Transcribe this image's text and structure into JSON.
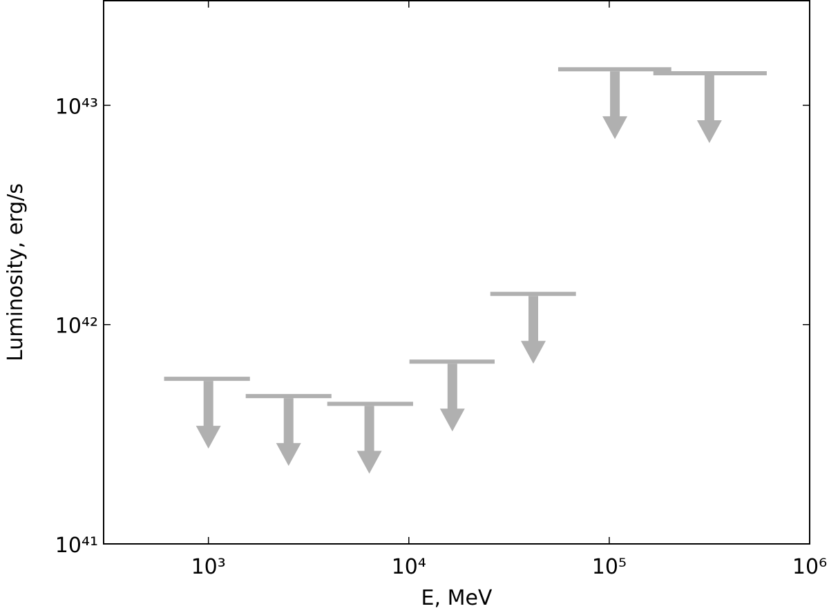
{
  "chart_data": {
    "type": "upper-limit",
    "xlabel": "E, MeV",
    "ylabel": "Luminosity, erg/s",
    "x": [
      1000,
      2512,
      6350,
      16490,
      41800,
      106700,
      316000
    ],
    "x_low": [
      601,
      1535,
      3917,
      10070,
      25500,
      55600,
      166000
    ],
    "x_high": [
      1611,
      4111,
      10500,
      26800,
      68200,
      204000,
      611000
    ],
    "values": [
      5.66e+41,
      4.72e+41,
      4.35e+41,
      6.78e+41,
      1.38e+42,
      1.46e+43,
      1.4e+43
    ],
    "color": "#b0b0b0",
    "xlog": true,
    "ylog": true,
    "xlim": [
      300,
      1000000
    ],
    "ylim": [
      1e+41,
      3e+43
    ],
    "xticks": [
      {
        "value": 1000,
        "label": "10³"
      },
      {
        "value": 10000,
        "label": "10⁴"
      },
      {
        "value": 100000,
        "label": "10⁵"
      },
      {
        "value": 1000000,
        "label": "10⁶"
      }
    ],
    "yticks": [
      {
        "value": 1e+41,
        "label": "10⁴¹"
      },
      {
        "value": 1e+42,
        "label": "10⁴²"
      },
      {
        "value": 1e+43,
        "label": "10⁴³"
      }
    ]
  }
}
